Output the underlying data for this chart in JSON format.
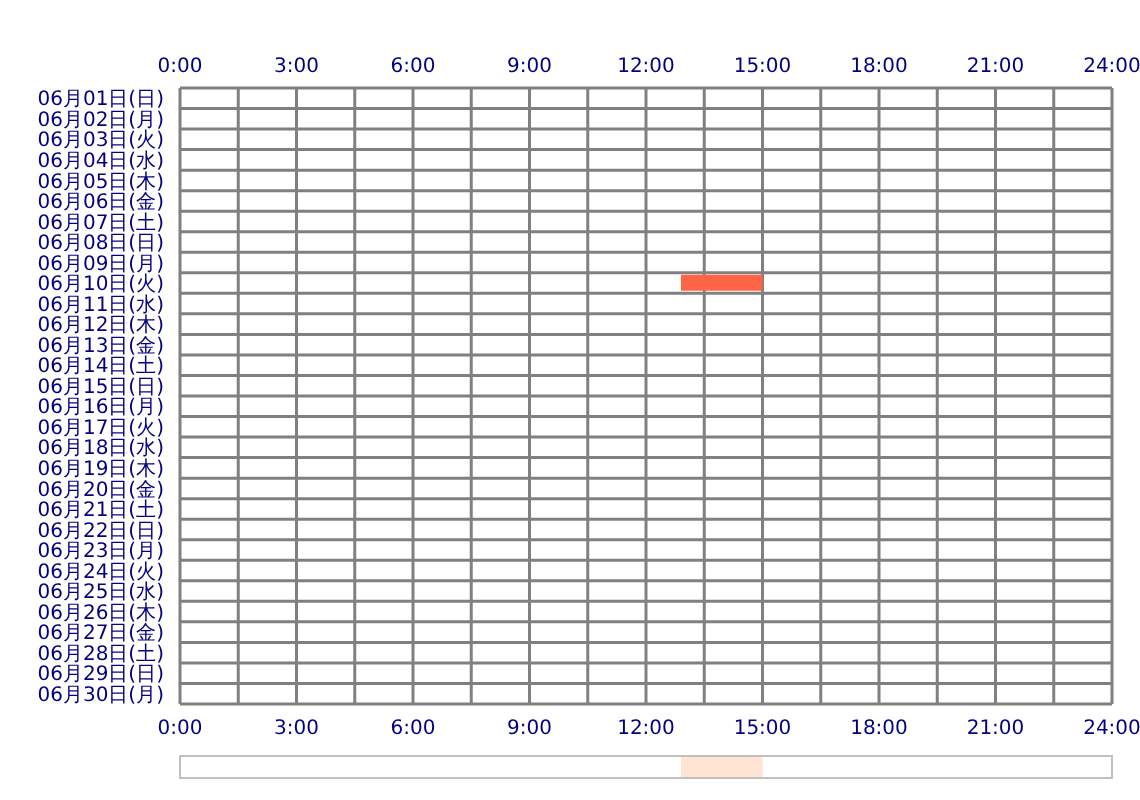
{
  "chart_data": {
    "type": "bar",
    "orientation": "horizontal",
    "categories": [
      "06月01日(日)",
      "06月02日(月)",
      "06月03日(火)",
      "06月04日(水)",
      "06月05日(木)",
      "06月06日(金)",
      "06月07日(土)",
      "06月08日(日)",
      "06月09日(月)",
      "06月10日(火)",
      "06月11日(水)",
      "06月12日(木)",
      "06月13日(金)",
      "06月14日(土)",
      "06月15日(日)",
      "06月16日(月)",
      "06月17日(火)",
      "06月18日(水)",
      "06月19日(木)",
      "06月20日(金)",
      "06月21日(土)",
      "06月22日(日)",
      "06月23日(月)",
      "06月24日(火)",
      "06月25日(水)",
      "06月26日(木)",
      "06月27日(金)",
      "06月28日(土)",
      "06月29日(日)",
      "06月30日(月)"
    ],
    "base": [
      null,
      null,
      null,
      null,
      null,
      null,
      null,
      null,
      null,
      12.9,
      null,
      null,
      null,
      null,
      null,
      null,
      null,
      null,
      null,
      null,
      null,
      null,
      null,
      null,
      null,
      null,
      null,
      null,
      null,
      null
    ],
    "values": [
      null,
      null,
      null,
      null,
      null,
      null,
      null,
      null,
      null,
      2.1,
      null,
      null,
      null,
      null,
      null,
      null,
      null,
      null,
      null,
      null,
      null,
      null,
      null,
      null,
      null,
      null,
      null,
      null,
      null,
      null
    ],
    "color": "#fe6446",
    "xlim": [
      0,
      24
    ],
    "xticks": [
      {
        "value": 0,
        "label": "0:00"
      },
      {
        "value": 1.5,
        "label": null
      },
      {
        "value": 3,
        "label": "3:00"
      },
      {
        "value": 4.5,
        "label": null
      },
      {
        "value": 6,
        "label": "6:00"
      },
      {
        "value": 7.5,
        "label": null
      },
      {
        "value": 9,
        "label": "9:00"
      },
      {
        "value": 10.5,
        "label": null
      },
      {
        "value": 12,
        "label": "12:00"
      },
      {
        "value": 13.5,
        "label": null
      },
      {
        "value": 15,
        "label": "15:00"
      },
      {
        "value": 16.5,
        "label": null
      },
      {
        "value": 18,
        "label": "18:00"
      },
      {
        "value": 19.5,
        "label": null
      },
      {
        "value": 21,
        "label": "21:00"
      },
      {
        "value": 22.5,
        "label": null
      },
      {
        "value": 24,
        "label": "24:00"
      }
    ],
    "x2lim": [
      0,
      24
    ],
    "x2ticks": [
      {
        "value": 0,
        "label": "0:00"
      },
      {
        "value": 1.5,
        "label": null
      },
      {
        "value": 3,
        "label": "3:00"
      },
      {
        "value": 4.5,
        "label": null
      },
      {
        "value": 6,
        "label": "6:00"
      },
      {
        "value": 7.5,
        "label": null
      },
      {
        "value": 9,
        "label": "9:00"
      },
      {
        "value": 10.5,
        "label": null
      },
      {
        "value": 12,
        "label": "12:00"
      },
      {
        "value": 13.5,
        "label": null
      },
      {
        "value": 15,
        "label": "15:00"
      },
      {
        "value": 16.5,
        "label": null
      },
      {
        "value": 18,
        "label": "18:00"
      },
      {
        "value": 19.5,
        "label": null
      },
      {
        "value": 21,
        "label": "21:00"
      },
      {
        "value": 22.5,
        "label": null
      },
      {
        "value": 24,
        "label": "24:00"
      }
    ],
    "grid": true
  }
}
